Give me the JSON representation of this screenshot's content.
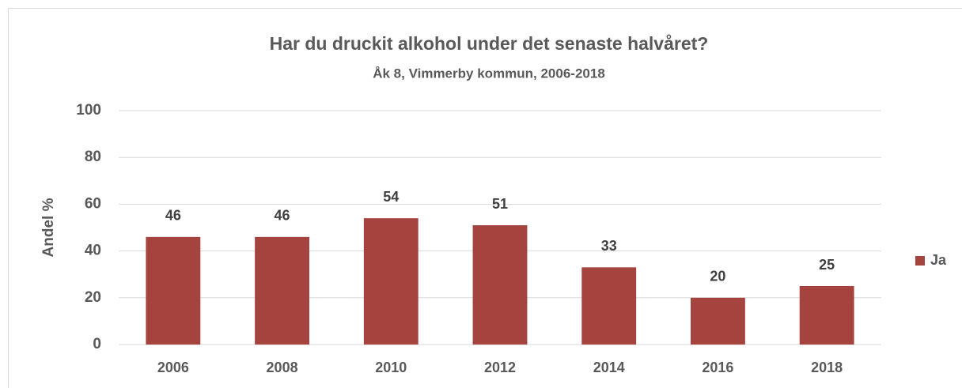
{
  "chart_data": {
    "type": "bar",
    "title": "Har du druckit alkohol under det senaste halvåret?",
    "subtitle": "Åk 8, Vimmerby kommun, 2006-2018",
    "y_label": "Andel %",
    "categories": [
      "2006",
      "2008",
      "2010",
      "2012",
      "2014",
      "2016",
      "2018"
    ],
    "series": [
      {
        "name": "Ja",
        "color": "#a5443f",
        "values": [
          46,
          46,
          54,
          51,
          33,
          20,
          25
        ]
      }
    ],
    "ylim": [
      0,
      100
    ],
    "yticks": [
      0,
      20,
      40,
      60,
      80,
      100
    ],
    "grid": true,
    "legend": "right"
  }
}
